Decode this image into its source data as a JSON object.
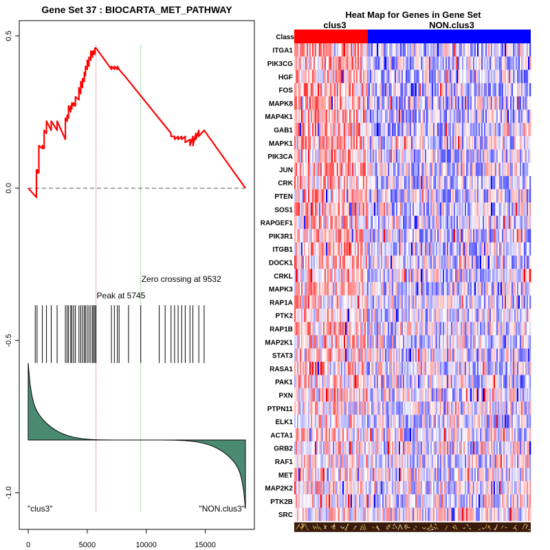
{
  "chart_data": [
    {
      "type": "line",
      "title": "Gene Set  37 : BIOCARTA_MET_PATHWAY",
      "x_ticks": [
        0,
        5000,
        10000,
        15000
      ],
      "y_ticks": [
        "0.5",
        "0.0",
        "-0.5",
        "-1.0"
      ],
      "y_tick_values": [
        0.5,
        0.0,
        -0.5,
        -1.0
      ],
      "xlim": [
        0,
        18400
      ],
      "ylim": [
        -1.12,
        0.55
      ],
      "running_es": {
        "x": [
          0,
          700,
          700,
          750,
          750,
          900,
          900,
          1200,
          1200,
          1350,
          1350,
          1550,
          1550,
          1950,
          1950,
          2450,
          2450,
          3150,
          3150,
          3300,
          3300,
          3420,
          3420,
          3600,
          3600,
          3700,
          3700,
          3850,
          3850,
          4000,
          4000,
          4300,
          4300,
          4450,
          4450,
          4600,
          4600,
          4750,
          4750,
          4850,
          4850,
          5000,
          5000,
          5150,
          5150,
          5300,
          5300,
          5450,
          5450,
          5550,
          5550,
          5650,
          5650,
          5745,
          7050,
          7050,
          7300,
          7300,
          7550,
          7550,
          7700,
          7700,
          8350,
          12100,
          12100,
          12400,
          12400,
          12700,
          12700,
          13000,
          13000,
          13300,
          13300,
          13700,
          13700,
          13950,
          13950,
          14200,
          14200,
          14450,
          14450,
          14900,
          18400
        ],
        "es": [
          0.0,
          -0.03,
          0.06,
          0.05,
          0.06,
          0.05,
          0.14,
          0.13,
          0.14,
          0.13,
          0.19,
          0.18,
          0.22,
          0.19,
          0.22,
          0.19,
          0.22,
          0.16,
          0.23,
          0.22,
          0.24,
          0.23,
          0.27,
          0.25,
          0.27,
          0.26,
          0.28,
          0.27,
          0.28,
          0.27,
          0.3,
          0.29,
          0.33,
          0.31,
          0.35,
          0.33,
          0.36,
          0.35,
          0.38,
          0.37,
          0.4,
          0.39,
          0.42,
          0.4,
          0.43,
          0.42,
          0.45,
          0.43,
          0.45,
          0.44,
          0.45,
          0.44,
          0.46,
          0.46,
          0.39,
          0.4,
          0.39,
          0.4,
          0.39,
          0.4,
          0.39,
          0.39,
          0.36,
          0.18,
          0.17,
          0.17,
          0.16,
          0.17,
          0.16,
          0.17,
          0.16,
          0.17,
          0.15,
          0.16,
          0.14,
          0.17,
          0.14,
          0.18,
          0.16,
          0.19,
          0.17,
          0.19,
          0.0
        ]
      },
      "hit_positions": [
        600,
        750,
        1200,
        1550,
        1950,
        2450,
        3150,
        3300,
        3420,
        3600,
        3700,
        3850,
        4000,
        4300,
        4450,
        4600,
        4750,
        4850,
        5000,
        5150,
        5300,
        5450,
        5550,
        5650,
        5745,
        7050,
        7300,
        7550,
        7700,
        8500,
        9532,
        11100,
        11600,
        12100,
        12400,
        12700,
        13000,
        13300,
        13700,
        13950,
        14450,
        14900
      ],
      "peak": {
        "x": 5745,
        "label": "Peak at 5745"
      },
      "zero_crossing": {
        "x": 9532,
        "label": "Zero crossing at 9532"
      },
      "left_class_label": "\"clus3\"",
      "right_class_label": "\"NON.clus3\"",
      "colors": {
        "es_line": "#ff0000",
        "baseline": "#555555",
        "peak_line": "#a01030",
        "zero_line": "#00a000",
        "metric_fill": "#4a8a72"
      }
    },
    {
      "type": "heatmap",
      "title": "Heat Map for Genes in Gene Set",
      "class_labels": [
        "clus3",
        "NON.clus3"
      ],
      "class_label_row": "Class",
      "class_split_fraction": 0.31,
      "class_colors": [
        "#ff0000",
        "#0000ff"
      ],
      "genes": [
        "ITGA1",
        "PIK3CG",
        "HGF",
        "FOS",
        "MAPK8",
        "MAP4K1",
        "GAB1",
        "MAPK1",
        "PIK3CA",
        "JUN",
        "CRK",
        "PTEN",
        "SOS1",
        "RAPGEF1",
        "PIK3R1",
        "ITGB1",
        "DOCK1",
        "CRKL",
        "MAPK3",
        "RAP1A",
        "PTK2",
        "RAP1B",
        "MAP2K1",
        "STAT3",
        "RASA1",
        "PAK1",
        "PXN",
        "PTPN11",
        "ELK1",
        "ACTA1",
        "GRB2",
        "RAF1",
        "MET",
        "MAP2K2",
        "PTK2B",
        "SRC"
      ]
    }
  ]
}
